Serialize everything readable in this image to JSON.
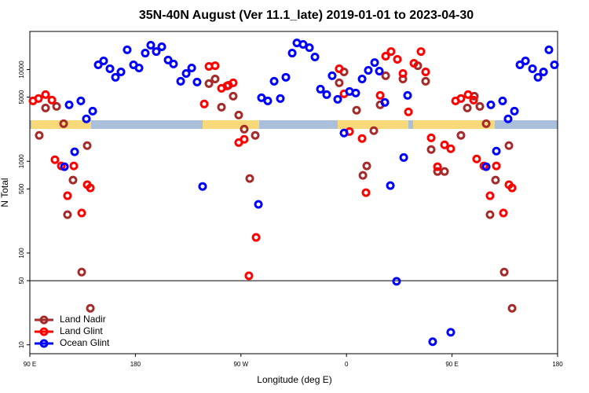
{
  "chart_data": {
    "type": "scatter",
    "title": "35N-40N August (Ver 11.1_late)   2019-01-01 to 2023-04-30",
    "xlabel": "Longitude (deg E)",
    "ylabel": "N Total",
    "xlim": [
      90,
      540
    ],
    "ylim": [
      8,
      26000
    ],
    "yscale": "log",
    "xticks": [
      {
        "value": 90,
        "label": "90 E"
      },
      180,
      {
        "value": 270,
        "label": "90 W"
      },
      {
        "value": 360,
        "label": "0"
      },
      {
        "value": 450,
        "label": "90 E"
      },
      {
        "value": 540,
        "label": "180"
      }
    ],
    "yticks": [
      10,
      50,
      100,
      500,
      1000,
      5000,
      10000
    ],
    "hline": 50,
    "legend": "lower left",
    "series": [
      {
        "name": "Land Nadir",
        "color": "#a52a2a",
        "x": [
          98,
          103.4,
          112.8,
          118.8,
          122.1,
          126.8,
          134.2,
          138.9,
          141.6,
          242.7,
          248,
          253.4,
          259.4,
          263.4,
          268.1,
          272.8,
          277.5,
          282.2,
          353.8,
          357.9,
          368.6,
          374,
          377.3,
          383.3,
          388.7,
          393.4,
          408.1,
          420.8,
          427.5,
          432.2,
          437.6,
          443.6,
          457.6,
          463,
          469,
          473.7,
          479.1,
          482.4,
          487.1,
          494.5,
          498.5,
          501.2
        ],
        "values": [
          1915,
          3811,
          3963,
          2570,
          262,
          624,
          62,
          1483,
          25,
          7020,
          7890,
          3890,
          6740,
          5120,
          3190,
          2240,
          649,
          1915,
          7160,
          9420,
          3600,
          702,
          889,
          2155,
          4120,
          8550,
          7890,
          11000,
          7450,
          1343,
          774,
          774,
          1915,
          3811,
          5120,
          3963,
          2570,
          262,
          624,
          62,
          1483,
          25
        ]
      },
      {
        "name": "Land Glint",
        "color": "#ff0000",
        "x": [
          92.7,
          97.4,
          103.4,
          108.8,
          111.4,
          116.8,
          122.1,
          127.5,
          134.2,
          138.9,
          141.6,
          238.7,
          242.7,
          248,
          253.4,
          258.1,
          263.4,
          268.1,
          272.8,
          276.8,
          282.9,
          353.8,
          357.9,
          362.6,
          373.3,
          376.6,
          388.7,
          393.4,
          398,
          403.4,
          408.1,
          412.8,
          417.5,
          423.5,
          427.5,
          432.2,
          437.6,
          443.6,
          448.9,
          453,
          457.6,
          463.7,
          468.4,
          471,
          477.1,
          482.4,
          487.8,
          493.8,
          498.5,
          501.2
        ],
        "values": [
          4550,
          4830,
          5330,
          4640,
          1040,
          889,
          421,
          889,
          273,
          555,
          512,
          4210,
          10800,
          11000,
          6240,
          6620,
          7160,
          1600,
          1735,
          56.5,
          148,
          10200,
          5430,
          2110,
          1770,
          455,
          5220,
          13960,
          15700,
          12900,
          9060,
          3450,
          11700,
          15700,
          9420,
          1800,
          872,
          1510,
          1370,
          4550,
          4830,
          5330,
          4640,
          1060,
          889,
          421,
          889,
          273,
          555,
          512
        ]
      },
      {
        "name": "Ocean Glint",
        "color": "#0000ff",
        "x": [
          119.5,
          123.5,
          128.2,
          133.5,
          138.2,
          143.6,
          148.3,
          152.9,
          158.3,
          163,
          167.7,
          173,
          178.4,
          183.1,
          188.4,
          193.1,
          197.8,
          202.5,
          207.9,
          212.5,
          218.6,
          223.3,
          228,
          232.6,
          237.3,
          284.9,
          287.5,
          292.9,
          298.3,
          303.6,
          308.3,
          313.7,
          317.7,
          323,
          328.4,
          333.1,
          337.8,
          343.1,
          347.8,
          352.5,
          357.9,
          362.6,
          367.9,
          373.3,
          378.6,
          384,
          388,
          392.7,
          397.4,
          402.7,
          408.8,
          412.1,
          433.5,
          448.9,
          479.1,
          483.1,
          487.8,
          493.1,
          497.8,
          503.2,
          507.9,
          512.6,
          518.6,
          523.3,
          528,
          532.6,
          537.3
        ],
        "values": [
          872,
          4120,
          1268,
          4550,
          2900,
          3520,
          11250,
          12400,
          10200,
          8230,
          9420,
          16400,
          11250,
          10400,
          15100,
          18400,
          15700,
          17700,
          12700,
          11500,
          7450,
          9060,
          10400,
          7300,
          532,
          339,
          4920,
          4550,
          7450,
          4830,
          8230,
          15100,
          19500,
          18800,
          17300,
          13700,
          6110,
          5330,
          8550,
          4730,
          2030,
          5770,
          5540,
          7890,
          9800,
          11900,
          9610,
          4380,
          543,
          49.2,
          1100,
          5220,
          10.8,
          13.7,
          872,
          4120,
          1290,
          4550,
          2900,
          3520,
          11250,
          12400,
          10200,
          8230,
          9420,
          16400,
          11250
        ]
      }
    ]
  }
}
